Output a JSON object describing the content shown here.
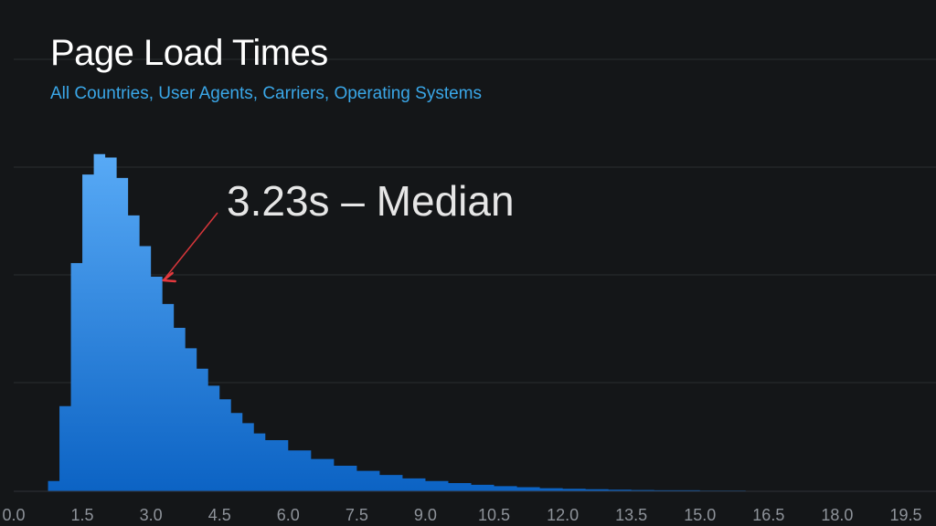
{
  "chart_data": {
    "type": "area",
    "title": "Page Load Times",
    "subtitle": "All Countries, User Agents, Carriers, Operating Systems",
    "xlabel": "",
    "ylabel": "",
    "xlim": [
      0,
      20
    ],
    "ylim": [
      0,
      100
    ],
    "x_ticks": [
      "0.0",
      "1.5",
      "3.0",
      "4.5",
      "6.0",
      "7.5",
      "9.0",
      "10.5",
      "12.0",
      "13.5",
      "15.0",
      "16.5",
      "18.0",
      "19.5"
    ],
    "grid": true,
    "annotation": {
      "text": "3.23s – Median",
      "x": 3.23
    },
    "series": [
      {
        "fill_top": "#58aaf6",
        "fill_bottom": "#0c63c4",
        "x": [
          0.5,
          0.75,
          1.0,
          1.25,
          1.5,
          1.75,
          2.0,
          2.25,
          2.5,
          2.75,
          3.0,
          3.25,
          3.5,
          3.75,
          4.0,
          4.25,
          4.5,
          4.75,
          5.0,
          5.25,
          5.5,
          6.0,
          6.5,
          7.0,
          7.5,
          8.0,
          8.5,
          9.0,
          9.5,
          10.0,
          10.5,
          11.0,
          11.5,
          12.0,
          12.5,
          13.0,
          13.5,
          14.0,
          15.0,
          16.0,
          17.0,
          18.0,
          19.0,
          20.0
        ],
        "y": [
          0,
          3,
          25,
          67,
          93,
          99,
          98,
          92,
          81,
          72,
          63,
          55,
          48,
          42,
          36,
          31,
          27,
          23,
          20,
          17,
          15,
          12,
          9.5,
          7.5,
          6,
          4.8,
          3.8,
          3,
          2.4,
          1.9,
          1.5,
          1.2,
          0.9,
          0.75,
          0.6,
          0.48,
          0.38,
          0.3,
          0.2,
          0.13,
          0.08,
          0.05,
          0.03,
          0.02
        ]
      }
    ]
  }
}
